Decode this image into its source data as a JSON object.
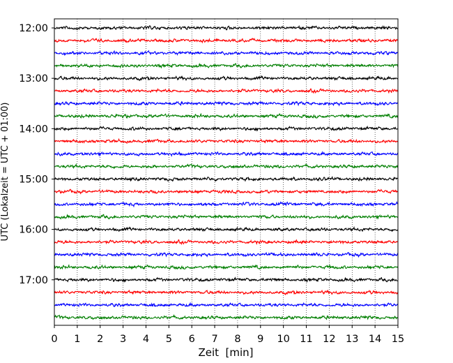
{
  "chart_data": {
    "type": "line",
    "title": "",
    "xlabel": "Zeit  [min]",
    "ylabel": "UTC (Lokalzeit = UTC + 01:00)",
    "xlim": [
      0,
      15
    ],
    "x_ticks": [
      "0",
      "1",
      "2",
      "3",
      "4",
      "5",
      "6",
      "7",
      "8",
      "9",
      "10",
      "11",
      "12",
      "13",
      "14",
      "15"
    ],
    "y_tick_labels": [
      "12:00",
      "13:00",
      "14:00",
      "15:00",
      "16:00",
      "17:00"
    ],
    "grid_vertical": true,
    "color_cycle": [
      "#000000",
      "#ff0000",
      "#0000ff",
      "#007f00"
    ],
    "series": [
      {
        "start": "12:00",
        "color": "#000000"
      },
      {
        "start": "12:15",
        "color": "#ff0000"
      },
      {
        "start": "12:30",
        "color": "#0000ff"
      },
      {
        "start": "12:45",
        "color": "#007f00"
      },
      {
        "start": "13:00",
        "color": "#000000"
      },
      {
        "start": "13:15",
        "color": "#ff0000"
      },
      {
        "start": "13:30",
        "color": "#0000ff"
      },
      {
        "start": "13:45",
        "color": "#007f00"
      },
      {
        "start": "14:00",
        "color": "#000000"
      },
      {
        "start": "14:15",
        "color": "#ff0000"
      },
      {
        "start": "14:30",
        "color": "#0000ff"
      },
      {
        "start": "14:45",
        "color": "#007f00"
      },
      {
        "start": "15:00",
        "color": "#000000"
      },
      {
        "start": "15:15",
        "color": "#ff0000"
      },
      {
        "start": "15:30",
        "color": "#0000ff"
      },
      {
        "start": "15:45",
        "color": "#007f00"
      },
      {
        "start": "16:00",
        "color": "#000000"
      },
      {
        "start": "16:15",
        "color": "#ff0000"
      },
      {
        "start": "16:30",
        "color": "#0000ff"
      },
      {
        "start": "16:45",
        "color": "#007f00"
      },
      {
        "start": "17:00",
        "color": "#000000"
      },
      {
        "start": "17:15",
        "color": "#ff0000"
      },
      {
        "start": "17:30",
        "color": "#0000ff"
      },
      {
        "start": "17:45",
        "color": "#007f00"
      }
    ]
  }
}
